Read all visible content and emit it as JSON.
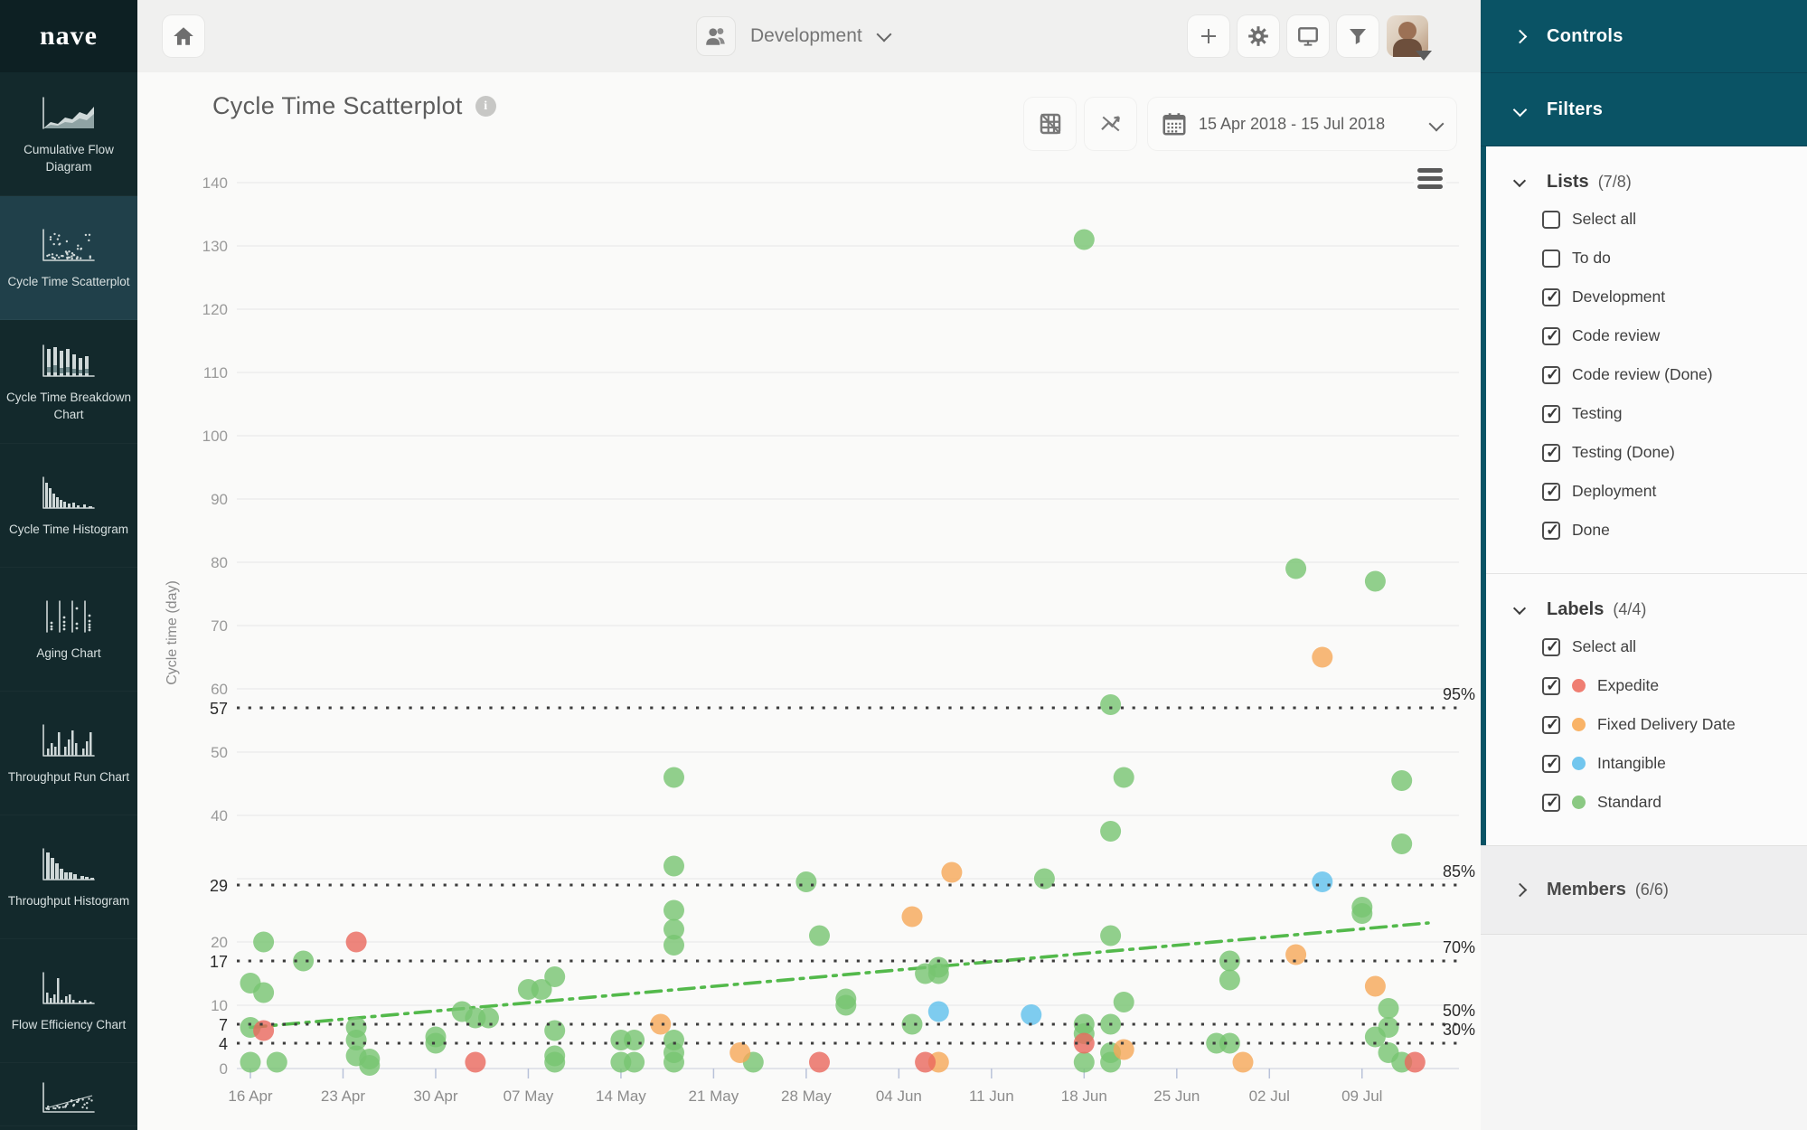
{
  "brand": {
    "logo_text": "nave"
  },
  "sidebar": {
    "items": [
      {
        "label": "Cumulative Flow Diagram",
        "icon": "cfd-icon",
        "active": false
      },
      {
        "label": "Cycle Time Scatterplot",
        "icon": "scatterplot-icon",
        "active": true
      },
      {
        "label": "Cycle Time Breakdown Chart",
        "icon": "breakdown-icon",
        "active": false
      },
      {
        "label": "Cycle Time Histogram",
        "icon": "histogram-icon",
        "active": false
      },
      {
        "label": "Aging Chart",
        "icon": "aging-icon",
        "active": false
      },
      {
        "label": "Throughput Run Chart",
        "icon": "run-chart-icon",
        "active": false
      },
      {
        "label": "Throughput Histogram",
        "icon": "throughput-histogram-icon",
        "active": false
      },
      {
        "label": "Flow Efficiency Chart",
        "icon": "flow-efficiency-icon",
        "active": false
      },
      {
        "label": "",
        "icon": "scatter-trend-icon",
        "active": false,
        "partial": true
      }
    ]
  },
  "topbar": {
    "board_name": "Development"
  },
  "chart": {
    "title": "Cycle Time Scatterplot",
    "date_range": "15 Apr 2018 - 15 Jul 2018",
    "y_axis_title": "Cycle time (day)"
  },
  "chart_data": {
    "type": "scatter",
    "title": "Cycle Time Scatterplot",
    "xlabel": "",
    "ylabel": "Cycle time (day)",
    "x_ticks": [
      "16 Apr",
      "23 Apr",
      "30 Apr",
      "07 May",
      "14 May",
      "21 May",
      "28 May",
      "04 Jun",
      "11 Jun",
      "18 Jun",
      "25 Jun",
      "02 Jul",
      "09 Jul"
    ],
    "y_ticks": [
      0,
      10,
      20,
      30,
      40,
      50,
      60,
      70,
      80,
      90,
      100,
      110,
      120,
      130,
      140
    ],
    "ylim": [
      0,
      145
    ],
    "grid": true,
    "legend_position": "right-panel",
    "percentiles": [
      {
        "label": "95%",
        "value": 57
      },
      {
        "label": "85%",
        "value": 29
      },
      {
        "label": "70%",
        "value": 17
      },
      {
        "label": "50%",
        "value": 7
      },
      {
        "label": "30%",
        "value": 4
      }
    ],
    "trend_line": {
      "style": "dash-dot",
      "color": "#53b94b",
      "from": [
        "16 Apr",
        6.5
      ],
      "to": [
        "14 Jul",
        23
      ]
    },
    "series": [
      {
        "name": "Standard",
        "color": "#77c471",
        "points": [
          [
            "16 Apr",
            13.5
          ],
          [
            "16 Apr",
            6.5
          ],
          [
            "16 Apr",
            1
          ],
          [
            "17 Apr",
            20
          ],
          [
            "17 Apr",
            12
          ],
          [
            "18 Apr",
            1
          ],
          [
            "20 Apr",
            17
          ],
          [
            "24 Apr",
            6.5
          ],
          [
            "24 Apr",
            4.5
          ],
          [
            "24 Apr",
            2
          ],
          [
            "25 Apr",
            1.5
          ],
          [
            "25 Apr",
            0.5
          ],
          [
            "30 Apr",
            5
          ],
          [
            "30 Apr",
            4
          ],
          [
            "02 May",
            9
          ],
          [
            "03 May",
            8
          ],
          [
            "04 May",
            8
          ],
          [
            "07 May",
            12.5
          ],
          [
            "08 May",
            12.5
          ],
          [
            "09 May",
            14.5
          ],
          [
            "09 May",
            6
          ],
          [
            "09 May",
            2
          ],
          [
            "09 May",
            1
          ],
          [
            "14 May",
            4.5
          ],
          [
            "14 May",
            1
          ],
          [
            "15 May",
            4.5
          ],
          [
            "15 May",
            1
          ],
          [
            "18 May",
            46
          ],
          [
            "18 May",
            32
          ],
          [
            "18 May",
            25
          ],
          [
            "18 May",
            22
          ],
          [
            "18 May",
            19.5
          ],
          [
            "18 May",
            4.5
          ],
          [
            "18 May",
            2.5
          ],
          [
            "18 May",
            1
          ],
          [
            "24 May",
            1
          ],
          [
            "28 May",
            29.5
          ],
          [
            "29 May",
            21
          ],
          [
            "31 May",
            11
          ],
          [
            "31 May",
            10
          ],
          [
            "05 Jun",
            7
          ],
          [
            "06 Jun",
            15
          ],
          [
            "07 Jun",
            16
          ],
          [
            "07 Jun",
            15
          ],
          [
            "15 Jun",
            30
          ],
          [
            "18 Jun",
            131
          ],
          [
            "18 Jun",
            7
          ],
          [
            "18 Jun",
            5.5
          ],
          [
            "18 Jun",
            1
          ],
          [
            "20 Jun",
            57.5
          ],
          [
            "20 Jun",
            37.5
          ],
          [
            "20 Jun",
            21
          ],
          [
            "20 Jun",
            7
          ],
          [
            "20 Jun",
            2.5
          ],
          [
            "20 Jun",
            1
          ],
          [
            "21 Jun",
            46
          ],
          [
            "21 Jun",
            10.5
          ],
          [
            "28 Jun",
            4
          ],
          [
            "29 Jun",
            4
          ],
          [
            "29 Jun",
            17
          ],
          [
            "29 Jun",
            14
          ],
          [
            "04 Jul",
            79
          ],
          [
            "09 Jul",
            25.5
          ],
          [
            "09 Jul",
            24.5
          ],
          [
            "10 Jul",
            77
          ],
          [
            "10 Jul",
            5
          ],
          [
            "11 Jul",
            9.5
          ],
          [
            "11 Jul",
            6.5
          ],
          [
            "11 Jul",
            2.5
          ],
          [
            "12 Jul",
            45.5
          ],
          [
            "12 Jul",
            35.5
          ],
          [
            "12 Jul",
            1
          ]
        ]
      },
      {
        "name": "Fixed Delivery Date",
        "color": "#f6a758",
        "points": [
          [
            "17 May",
            7
          ],
          [
            "23 May",
            2.5
          ],
          [
            "05 Jun",
            24
          ],
          [
            "07 Jun",
            1
          ],
          [
            "08 Jun",
            31
          ],
          [
            "21 Jun",
            3
          ],
          [
            "30 Jun",
            1
          ],
          [
            "04 Jul",
            18
          ],
          [
            "06 Jul",
            65
          ],
          [
            "10 Jul",
            13
          ]
        ]
      },
      {
        "name": "Intangible",
        "color": "#5fc1ec",
        "points": [
          [
            "07 Jun",
            9
          ],
          [
            "14 Jun",
            8.5
          ],
          [
            "06 Jul",
            29.5
          ]
        ]
      },
      {
        "name": "Expedite",
        "color": "#ea685c",
        "points": [
          [
            "17 Apr",
            6
          ],
          [
            "24 Apr",
            20
          ],
          [
            "03 May",
            1
          ],
          [
            "29 May",
            1
          ],
          [
            "06 Jun",
            1
          ],
          [
            "18 Jun",
            4
          ],
          [
            "13 Jul",
            1
          ]
        ]
      }
    ]
  },
  "right_panel": {
    "controls_label": "Controls",
    "filters_label": "Filters",
    "lists_section": {
      "title": "Lists",
      "count": "(7/8)",
      "items": [
        {
          "label": "Select all",
          "checked": false
        },
        {
          "label": "To do",
          "checked": false
        },
        {
          "label": "Development",
          "checked": true
        },
        {
          "label": "Code review",
          "checked": true
        },
        {
          "label": "Code review (Done)",
          "checked": true
        },
        {
          "label": "Testing",
          "checked": true
        },
        {
          "label": "Testing (Done)",
          "checked": true
        },
        {
          "label": "Deployment",
          "checked": true
        },
        {
          "label": "Done",
          "checked": true
        }
      ]
    },
    "labels_section": {
      "title": "Labels",
      "count": "(4/4)",
      "items": [
        {
          "label": "Select all",
          "checked": true,
          "dot": null
        },
        {
          "label": "Expedite",
          "checked": true,
          "dot": "#ef7e72"
        },
        {
          "label": "Fixed Delivery Date",
          "checked": true,
          "dot": "#f9b367"
        },
        {
          "label": "Intangible",
          "checked": true,
          "dot": "#72c6ee"
        },
        {
          "label": "Standard",
          "checked": true,
          "dot": "#8bc983"
        }
      ]
    },
    "members_section": {
      "title": "Members",
      "count": "(6/6)"
    }
  }
}
